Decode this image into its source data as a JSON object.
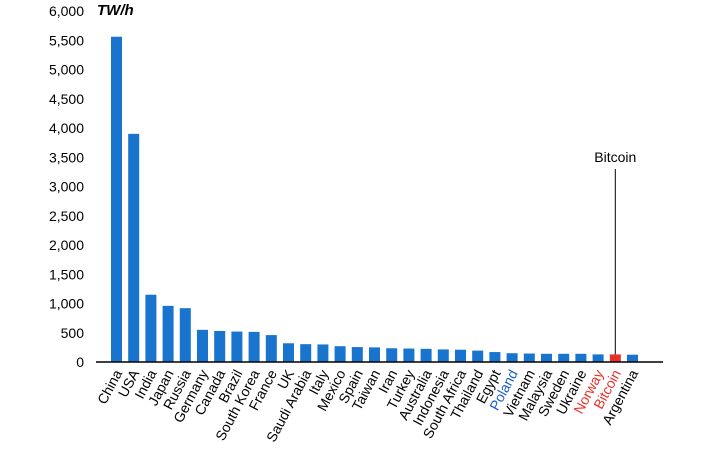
{
  "chart_data": {
    "type": "bar",
    "unit_label": "TW/h",
    "ylim": [
      0,
      6000
    ],
    "yticks": [
      0,
      500,
      1000,
      1500,
      2000,
      2500,
      3000,
      3500,
      4000,
      4500,
      5000,
      5500,
      6000
    ],
    "ytick_labels": [
      "0",
      "500",
      "1,000",
      "1,500",
      "2,000",
      "2,500",
      "3,000",
      "3,500",
      "4,000",
      "4,500",
      "5,000",
      "5,500",
      "6,000"
    ],
    "categories": [
      "China",
      "USA",
      "India",
      "Japan",
      "Russia",
      "Germany",
      "Canada",
      "Brazil",
      "South Korea",
      "France",
      "UK",
      "Saudi Arabia",
      "Italy",
      "Mexico",
      "Spain",
      "Taiwan",
      "Iran",
      "Turkey",
      "Australia",
      "Indonesia",
      "South Africa",
      "Thailand",
      "Egypt",
      "Poland",
      "Vietnam",
      "Malaysia",
      "Sweden",
      "Ukraine",
      "Norway",
      "Bitcoin",
      "Argentina"
    ],
    "values": [
      5560,
      3900,
      1150,
      960,
      920,
      550,
      530,
      520,
      515,
      460,
      320,
      305,
      300,
      270,
      255,
      250,
      235,
      230,
      225,
      215,
      210,
      195,
      170,
      150,
      145,
      140,
      140,
      140,
      130,
      130,
      125
    ],
    "colors": {
      "bar": "#1874cd",
      "highlight_bar": "#e8302a",
      "label_default": "#000000",
      "label_blue": "#1a5cc8",
      "label_red": "#e8302a"
    },
    "highlight_bars": [
      "Bitcoin"
    ],
    "label_color_overrides": {
      "Poland": "blue",
      "Norway": "red",
      "Bitcoin": "red"
    },
    "annotation": {
      "text": "Bitcoin",
      "target": "Bitcoin",
      "value": 3300
    },
    "grid": false,
    "legend": "none"
  }
}
